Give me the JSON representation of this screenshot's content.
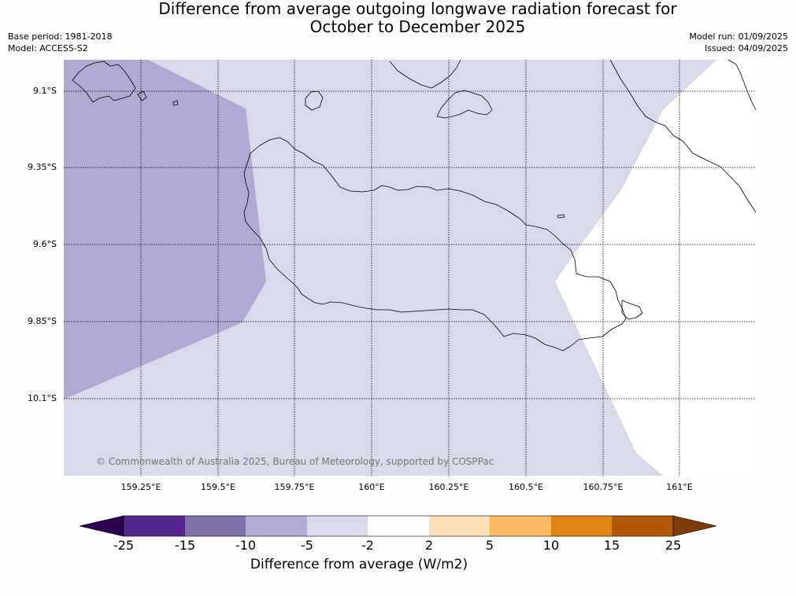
{
  "title": {
    "line1": "Difference from average outgoing longwave radiation forecast for",
    "line2": "October to December 2025"
  },
  "meta": {
    "base_period": "Base period: 1981-2018",
    "model": "Model: ACCESS-S2",
    "model_run": "Model run: 01/09/2025",
    "issued": "Issued: 04/09/2025"
  },
  "map": {
    "lat_labels": [
      "9.1°S",
      "9.35°S",
      "9.6°S",
      "9.85°S",
      "10.1°S"
    ],
    "lon_labels": [
      "159.25°E",
      "159.5°E",
      "159.75°E",
      "160°E",
      "160.25°E",
      "160.5°E",
      "160.75°E",
      "161°E"
    ],
    "copyright": "© Commonwealth of Australia 2025, Bureau of Meteorology, supported by COSPPac"
  },
  "colorbar": {
    "ticks": [
      "-25",
      "-15",
      "-10",
      "-5",
      "-2",
      "2",
      "5",
      "10",
      "15",
      "25"
    ],
    "label": "Difference from average (W/m2)",
    "colors": [
      "#2d0050",
      "#54278f",
      "#8073ac",
      "#b2abd2",
      "#d8daeb",
      "#ffffff",
      "#fee0b6",
      "#fdb863",
      "#e08214",
      "#b35806",
      "#7f3b08"
    ]
  }
}
